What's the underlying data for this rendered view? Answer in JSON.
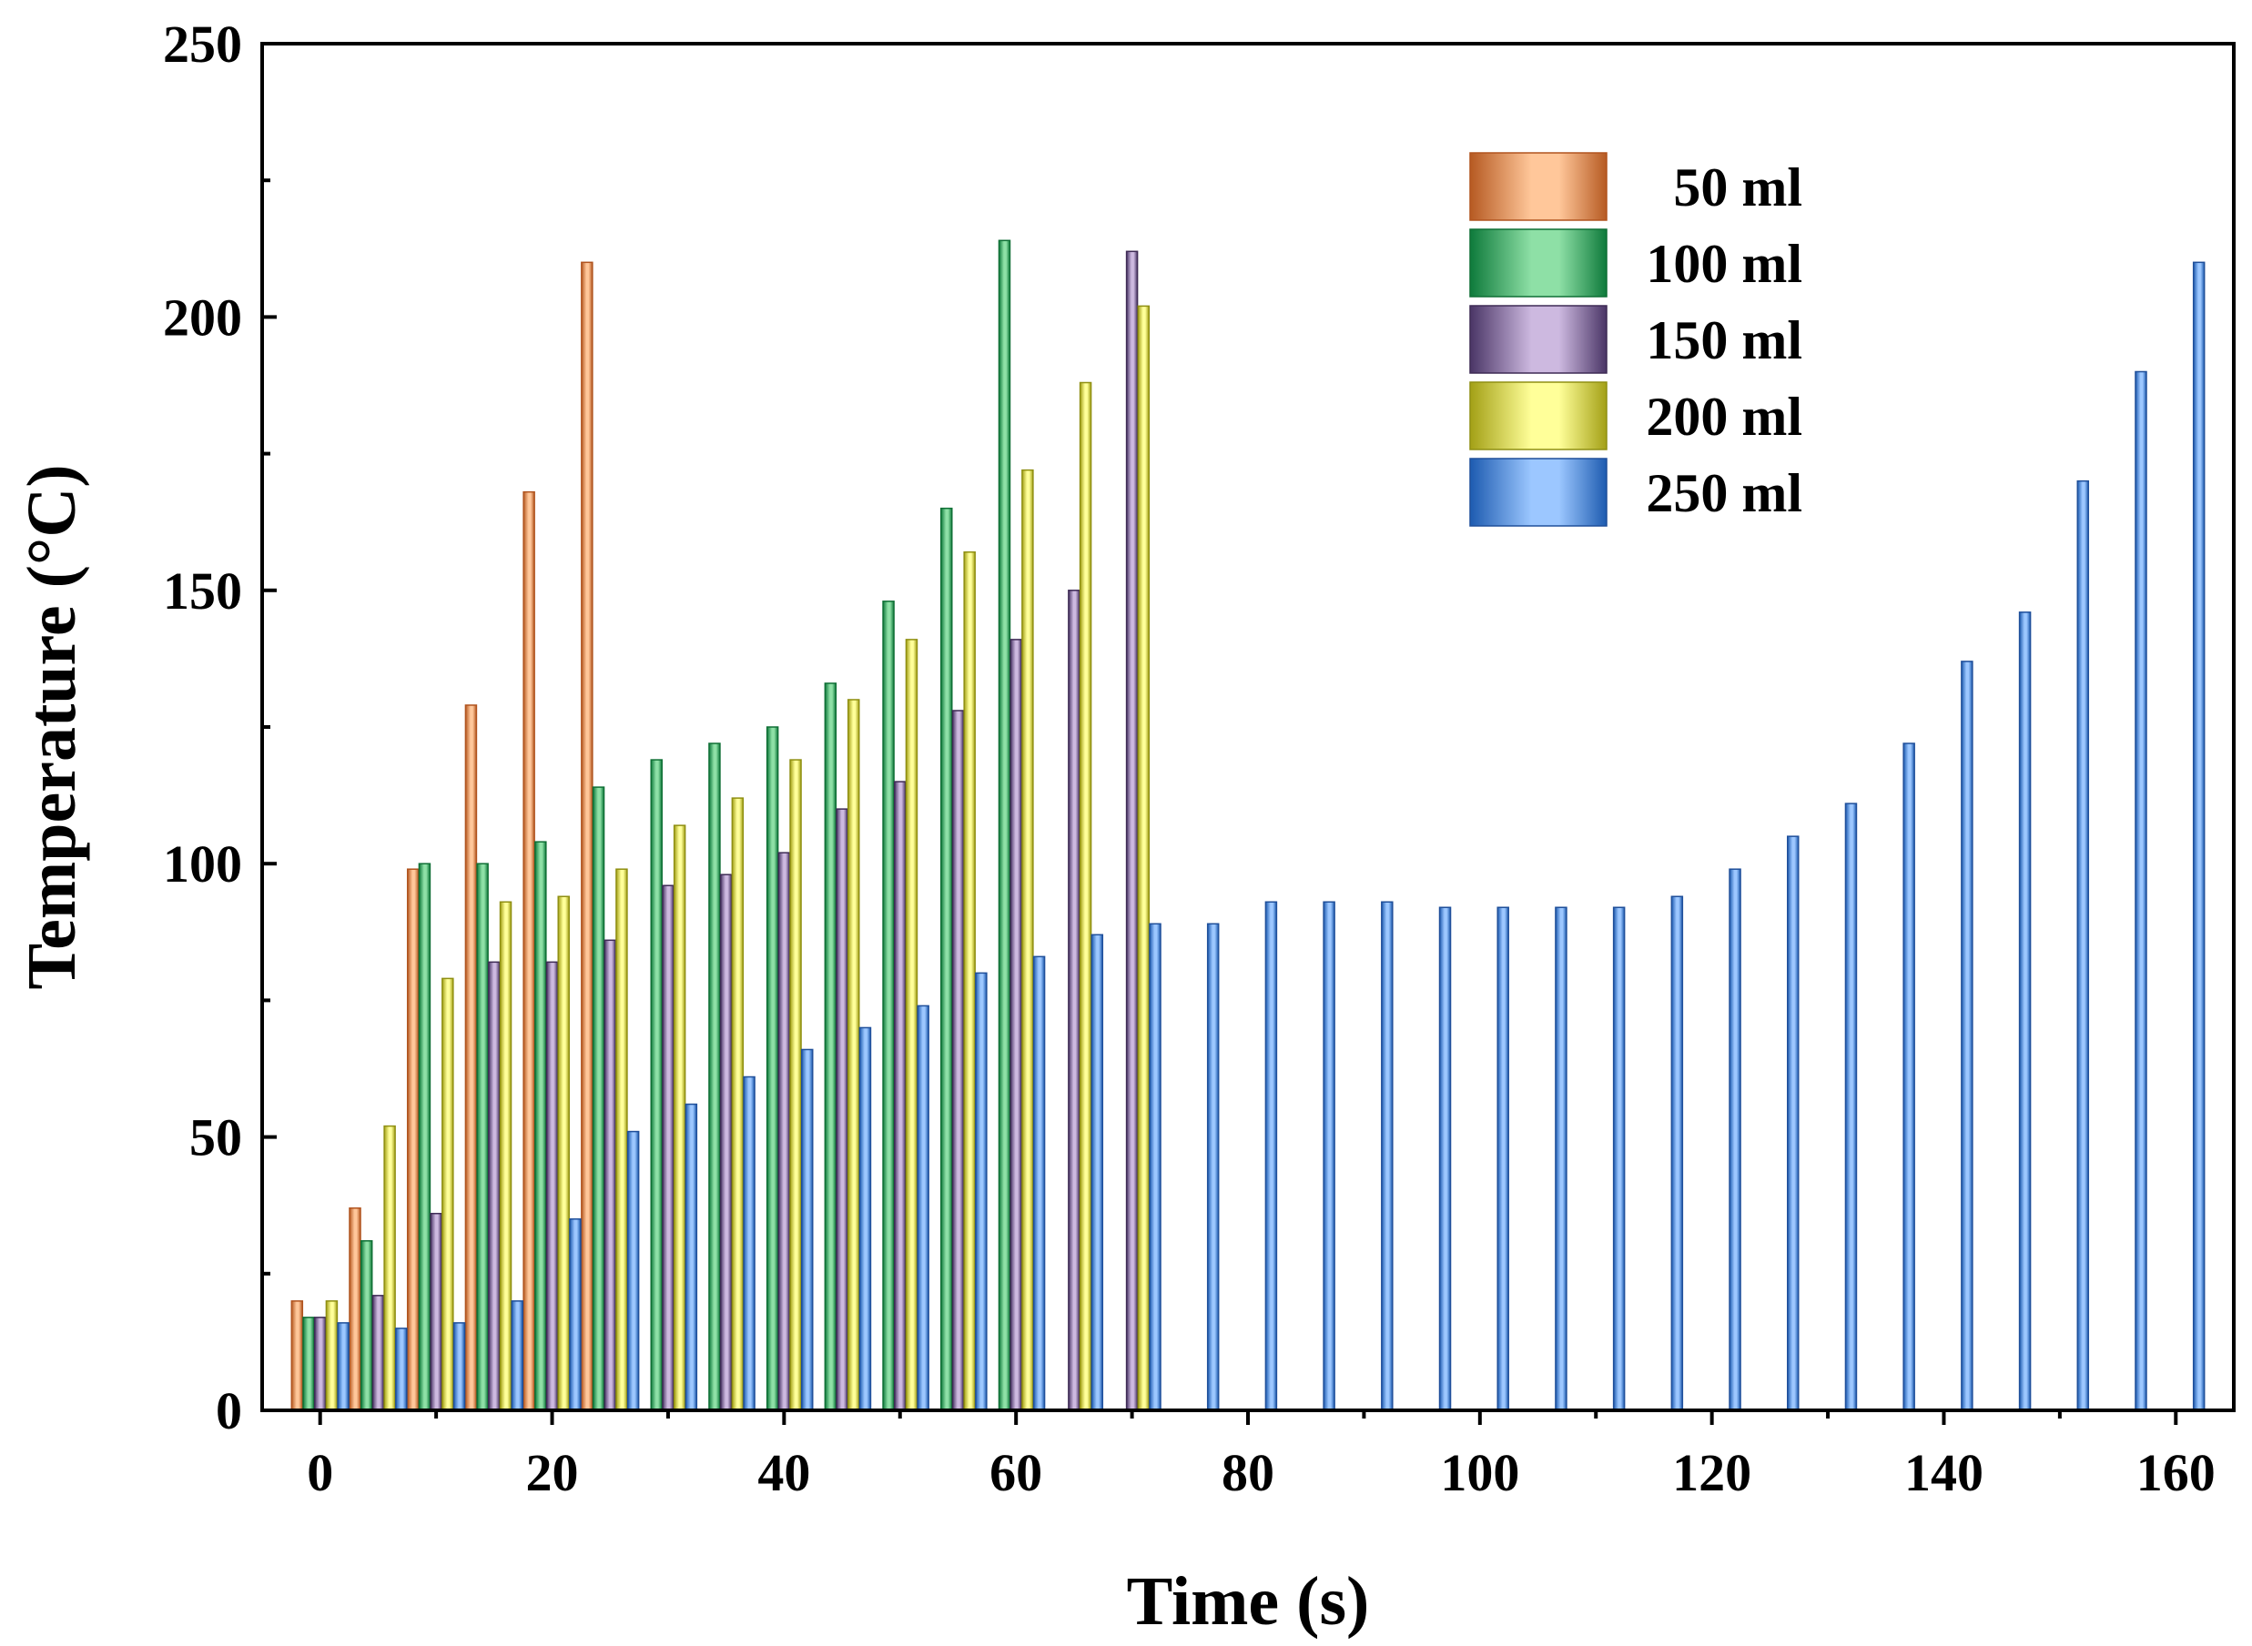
{
  "chart_data": {
    "type": "bar",
    "title": "",
    "xlabel": "Time (s)",
    "ylabel": "Temperature (°C)",
    "xlim": [
      -5,
      165
    ],
    "ylim": [
      0,
      250
    ],
    "xticks": [
      0,
      20,
      40,
      60,
      80,
      100,
      120,
      140,
      160
    ],
    "yticks": [
      0,
      50,
      100,
      150,
      200,
      250
    ],
    "grid": false,
    "legend_position": "top-right",
    "series": [
      {
        "name": "50 ml",
        "colors": {
          "edge": "#B0531E",
          "light": "#FFC79A",
          "dark": "#B65A22"
        },
        "x": [
          0,
          5,
          10,
          15,
          20,
          25
        ],
        "values": [
          20,
          37,
          99,
          129,
          168,
          210
        ]
      },
      {
        "name": "100 ml",
        "colors": {
          "edge": "#0F6F35",
          "light": "#8EE0A6",
          "dark": "#0E7A3B"
        },
        "x": [
          0,
          5,
          10,
          15,
          20,
          25,
          30,
          35,
          40,
          45,
          50,
          55,
          60
        ],
        "values": [
          17,
          31,
          100,
          100,
          104,
          114,
          119,
          122,
          125,
          133,
          148,
          165,
          214
        ]
      },
      {
        "name": "150 ml",
        "colors": {
          "edge": "#3E2B55",
          "light": "#CDB9E0",
          "dark": "#4A3566"
        },
        "x": [
          0,
          5,
          10,
          15,
          20,
          25,
          30,
          35,
          40,
          45,
          50,
          55,
          60,
          65,
          70
        ],
        "values": [
          17,
          21,
          36,
          82,
          82,
          86,
          96,
          98,
          102,
          110,
          115,
          128,
          141,
          150,
          212
        ]
      },
      {
        "name": "200 ml",
        "colors": {
          "edge": "#8F8F12",
          "light": "#FFFF99",
          "dark": "#A3A016"
        },
        "x": [
          0,
          5,
          10,
          15,
          20,
          25,
          30,
          35,
          40,
          45,
          50,
          55,
          60,
          65,
          70
        ],
        "values": [
          20,
          52,
          79,
          93,
          94,
          99,
          107,
          112,
          119,
          130,
          141,
          157,
          172,
          188,
          202
        ]
      },
      {
        "name": "250 ml",
        "colors": {
          "edge": "#1F4F9A",
          "light": "#9CC7FF",
          "dark": "#1D5BB0"
        },
        "x": [
          0,
          5,
          10,
          15,
          20,
          25,
          30,
          35,
          40,
          45,
          50,
          55,
          60,
          65,
          70,
          75,
          80,
          85,
          90,
          95,
          100,
          105,
          110,
          115,
          120,
          125,
          130,
          135,
          140,
          145,
          150,
          155,
          160
        ],
        "values": [
          16,
          15,
          16,
          20,
          35,
          51,
          56,
          61,
          66,
          70,
          74,
          80,
          83,
          87,
          89,
          89,
          93,
          93,
          93,
          92,
          92,
          92,
          92,
          94,
          99,
          105,
          111,
          122,
          137,
          146,
          170,
          190,
          210
        ]
      }
    ]
  }
}
